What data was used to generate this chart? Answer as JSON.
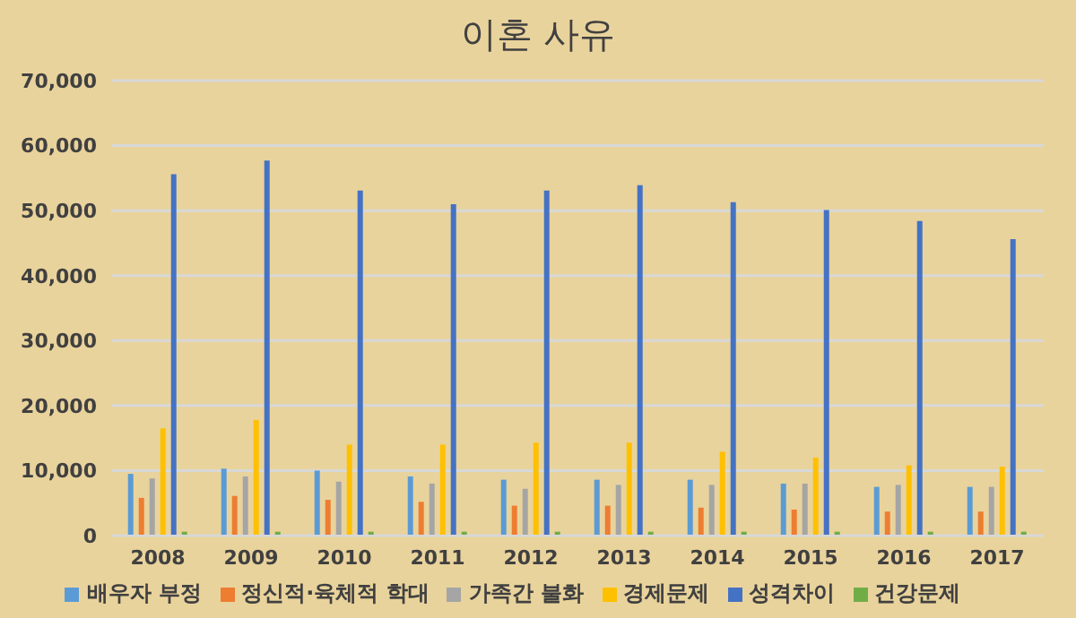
{
  "chart_data": {
    "type": "bar",
    "title": "이혼 사유",
    "categories": [
      "2008",
      "2009",
      "2010",
      "2011",
      "2012",
      "2013",
      "2014",
      "2015",
      "2016",
      "2017"
    ],
    "series": [
      {
        "name": "배우자 부정",
        "color": "#5b9bd5",
        "values": [
          9500,
          10300,
          10000,
          9100,
          8600,
          8600,
          8600,
          8000,
          7500,
          7500
        ]
      },
      {
        "name": "정신적·육체적 학대",
        "color": "#ed7d31",
        "values": [
          5800,
          6100,
          5500,
          5200,
          4600,
          4600,
          4300,
          4000,
          3700,
          3700
        ]
      },
      {
        "name": "가족간 불화",
        "color": "#a5a5a5",
        "values": [
          8800,
          9100,
          8300,
          8000,
          7200,
          7800,
          7800,
          8000,
          7800,
          7500
        ]
      },
      {
        "name": "경제문제",
        "color": "#ffc000",
        "values": [
          16500,
          17800,
          14000,
          14000,
          14300,
          14300,
          12900,
          12000,
          10800,
          10600
        ]
      },
      {
        "name": "성격차이",
        "color": "#4472c4",
        "values": [
          55600,
          57700,
          53100,
          51000,
          53100,
          53900,
          51300,
          50100,
          48400,
          45600
        ]
      },
      {
        "name": "건강문제",
        "color": "#70ad47",
        "values": [
          600,
          600,
          600,
          600,
          600,
          600,
          600,
          600,
          600,
          600
        ]
      }
    ],
    "ylim": [
      0,
      70000
    ],
    "yticks": [
      0,
      {
        "value": 10000,
        "label": "10,000"
      },
      {
        "value": 20000,
        "label": "20,000"
      },
      {
        "value": 30000,
        "label": "30,000"
      },
      {
        "value": 40000,
        "label": "40,000"
      },
      {
        "value": 50000,
        "label": "50,000"
      },
      {
        "value": 60000,
        "label": "60,000"
      },
      {
        "value": 70000,
        "label": "70,000"
      }
    ],
    "grid": "y",
    "legend": "bottom"
  }
}
